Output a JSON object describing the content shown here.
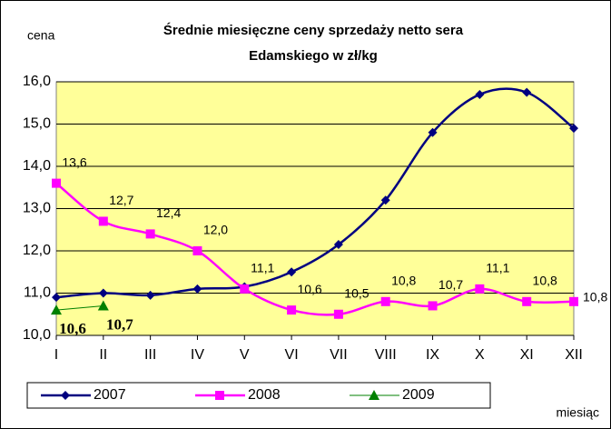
{
  "chart_data": {
    "type": "line",
    "title_lines": [
      "Średnie miesięczne ceny sprzedaży netto sera",
      "Edamskiego w zł/kg"
    ],
    "y_label": "cena",
    "x_label": "miesiąc",
    "categories": [
      "I",
      "II",
      "III",
      "IV",
      "V",
      "VI",
      "VII",
      "VIII",
      "IX",
      "X",
      "XI",
      "XII"
    ],
    "series": [
      {
        "name": "2007",
        "color": "#000080",
        "marker": "diamond",
        "values": [
          10.9,
          11.0,
          10.95,
          11.1,
          11.15,
          11.5,
          12.15,
          13.2,
          14.8,
          15.7,
          15.75,
          14.9
        ]
      },
      {
        "name": "2008",
        "color": "#FF00FF",
        "marker": "square",
        "values": [
          13.6,
          12.7,
          12.4,
          12.0,
          11.1,
          10.6,
          10.5,
          10.8,
          10.7,
          11.1,
          10.8,
          10.8
        ],
        "value_labels": [
          "13,6",
          "12,7",
          "12,4",
          "12,0",
          "11,1",
          "10,6",
          "10,5",
          "10,8",
          "10,7",
          "11,1",
          "10,8",
          "10,8"
        ]
      },
      {
        "name": "2009",
        "color": "#008000",
        "marker": "triangle",
        "values": [
          10.6,
          10.7,
          null,
          null,
          null,
          null,
          null,
          null,
          null,
          null,
          null,
          null
        ],
        "value_labels": [
          "10,6",
          "10,7",
          null,
          null,
          null,
          null,
          null,
          null,
          null,
          null,
          null,
          null
        ]
      }
    ],
    "ylim": [
      10.0,
      16.0
    ],
    "yticks": [
      {
        "value": 10.0,
        "label": "10,0"
      },
      {
        "value": 11.0,
        "label": "11,0"
      },
      {
        "value": 12.0,
        "label": "12,0"
      },
      {
        "value": 13.0,
        "label": "13,0"
      },
      {
        "value": 14.0,
        "label": "14,0"
      },
      {
        "value": 15.0,
        "label": "15,0"
      },
      {
        "value": 16.0,
        "label": "16,0"
      }
    ],
    "grid": true,
    "plot_background": "#FFFF99",
    "legend": "bottom"
  }
}
